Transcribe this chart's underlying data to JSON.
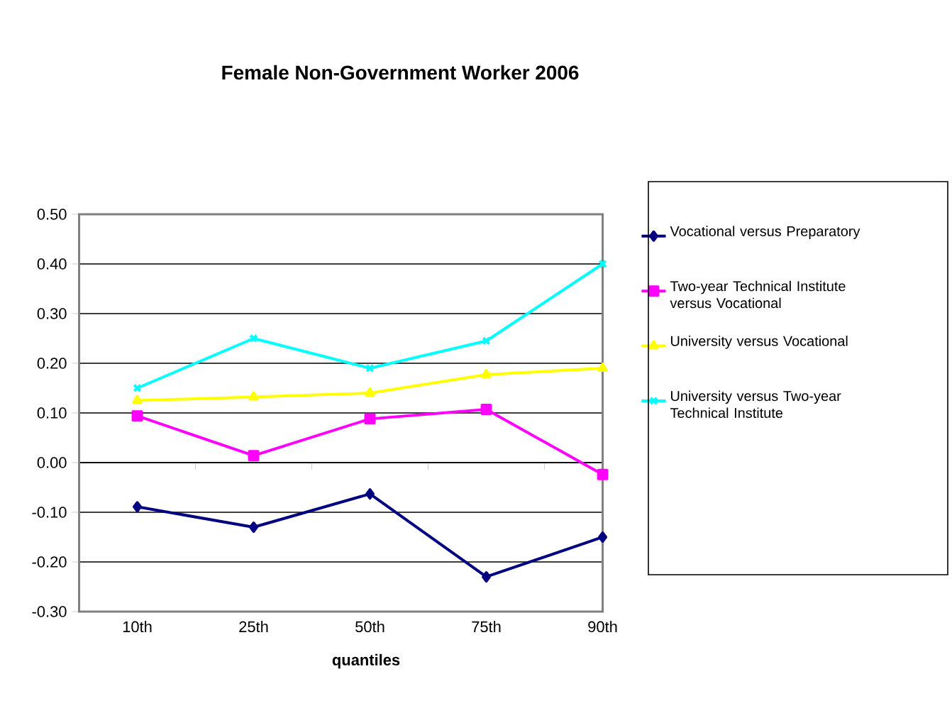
{
  "chart_data": {
    "type": "line",
    "title": "Female Non-Government Worker 2006",
    "xlabel": "quantiles",
    "categories": [
      "10th",
      "25th",
      "50th",
      "75th",
      "90th"
    ],
    "series": [
      {
        "name": "Vocational versus Preparatory",
        "color": "#000080",
        "marker": "diamond",
        "values": [
          -0.089,
          -0.13,
          -0.063,
          -0.23,
          -0.15
        ]
      },
      {
        "name": "Two-year Technical Institute versus Vocational",
        "color": "#ff00ff",
        "marker": "square",
        "values": [
          0.094,
          0.014,
          0.088,
          0.107,
          -0.024
        ]
      },
      {
        "name": "University versus Vocational",
        "color": "#ffff00",
        "marker": "triangle",
        "values": [
          0.125,
          0.132,
          0.14,
          0.177,
          0.19
        ]
      },
      {
        "name": "University versus Two-year Technical Institute",
        "color": "#00ffff",
        "marker": "cross",
        "values": [
          0.15,
          0.25,
          0.19,
          0.245,
          0.4
        ]
      }
    ],
    "ylim": [
      -0.3,
      0.5
    ],
    "yticks": [
      {
        "value": -0.3,
        "label": "-0.30"
      },
      {
        "value": -0.2,
        "label": "-0.20"
      },
      {
        "value": -0.1,
        "label": "-0.10"
      },
      {
        "value": 0,
        "label": "0.00"
      },
      {
        "value": 0.1,
        "label": "0.10"
      },
      {
        "value": 0.2,
        "label": "0.20"
      },
      {
        "value": 0.3,
        "label": "0.30"
      },
      {
        "value": 0.4,
        "label": "0.40"
      },
      {
        "value": 0.5,
        "label": "0.50"
      }
    ],
    "grid": "y",
    "legend": "right"
  }
}
